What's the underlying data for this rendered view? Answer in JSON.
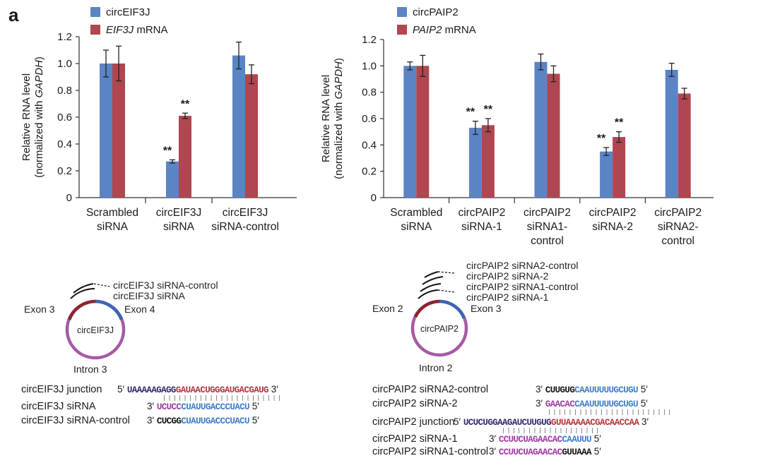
{
  "panel_label": "a",
  "colors": {
    "circ": "#5b84c4",
    "mrna": "#b0464f",
    "exon_dark": "#8b2530",
    "exon_blue": "#3c64b4",
    "intron": "#a65aa6"
  },
  "chart_data": [
    {
      "type": "bar",
      "ylabel": [
        "Relative RNA level",
        "(normalized with GAPDH)"
      ],
      "ylim": [
        0,
        1.2
      ],
      "yticks": [
        "0",
        "0.2",
        "0.4",
        "0.6",
        "0.8",
        "1.0",
        "1.2"
      ],
      "categories": [
        [
          "Scrambled",
          "siRNA"
        ],
        [
          "circEIF3J",
          "siRNA"
        ],
        [
          "circEIF3J",
          "siRNA-control"
        ]
      ],
      "series": [
        {
          "name": "circEIF3J",
          "values": [
            1.0,
            0.27,
            1.06
          ],
          "errors": [
            0.1,
            0.012,
            0.1
          ],
          "annotations": [
            "",
            "**",
            ""
          ]
        },
        {
          "name": "EIF3J mRNA",
          "values": [
            1.0,
            0.61,
            0.92
          ],
          "errors": [
            0.13,
            0.02,
            0.07
          ],
          "annotations": [
            "",
            "**",
            ""
          ]
        }
      ],
      "legend_position": "top-left",
      "grid": false
    },
    {
      "type": "bar",
      "ylabel": [
        "Relative RNA level",
        "(normalized with GAPDH)"
      ],
      "ylim": [
        0,
        1.2
      ],
      "yticks": [
        "0",
        "0.2",
        "0.4",
        "0.6",
        "0.8",
        "1.0",
        "1.2"
      ],
      "categories": [
        [
          "Scrambled",
          "siRNA"
        ],
        [
          "circPAIP2",
          "siRNA-1"
        ],
        [
          "circPAIP2",
          "siRNA1-",
          "control"
        ],
        [
          "circPAIP2",
          "siRNA-2"
        ],
        [
          "circPAIP2",
          "siRNA2-",
          "control"
        ]
      ],
      "series": [
        {
          "name": "circPAIP2",
          "values": [
            1.0,
            0.53,
            1.03,
            0.35,
            0.97
          ],
          "errors": [
            0.03,
            0.05,
            0.06,
            0.03,
            0.05
          ],
          "annotations": [
            "",
            "**",
            "",
            "**",
            ""
          ]
        },
        {
          "name": "PAIP2 mRNA",
          "values": [
            1.0,
            0.55,
            0.94,
            0.46,
            0.79
          ],
          "errors": [
            0.08,
            0.05,
            0.06,
            0.04,
            0.04
          ],
          "annotations": [
            "",
            "**",
            "",
            "**",
            ""
          ]
        }
      ],
      "legend_position": "top-left",
      "grid": false
    }
  ],
  "diagram_left": {
    "circle_label": "circEIF3J",
    "exon_left": "Exon 3",
    "exon_right": "Exon 4",
    "intron": "Intron 3",
    "arc_labels": [
      "circEIF3J siRNA-control",
      "circEIF3J siRNA"
    ]
  },
  "diagram_right": {
    "circle_label": "circPAIP2",
    "exon_left": "Exon 2",
    "exon_right": "Exon 3",
    "intron": "Intron 2",
    "arc_labels": [
      "circPAIP2 siRNA2-control",
      "circPAIP2 siRNA-2",
      "circPAIP2 siRNA1-control",
      "circPAIP2 siRNA-1"
    ]
  },
  "sequences_left": {
    "junction": {
      "label": "circEIF3J junction",
      "five": "5′",
      "three": "3′",
      "seq_a": "UAAAAAGAGG",
      "seq_b": "GAUAACUGGGAUGACGAUG"
    },
    "sirna": {
      "label": "circEIF3J siRNA",
      "three": "3′",
      "five": "5′",
      "seq_a": "UCUCC",
      "seq_b": "CUAUUGACCCUACU"
    },
    "control": {
      "label": "circEIF3J siRNA-control",
      "three": "3′",
      "five": "5′",
      "seq_a": "CUCGG",
      "seq_b": "CUAUUGACCCUACU"
    }
  },
  "sequences_right": {
    "sirna2_control": {
      "label": "circPAIP2 siRNA2-control",
      "three": "3′",
      "five": "5′",
      "seq_a": "CUUGUG",
      "seq_b": "CAAUUUUUGCUGU"
    },
    "sirna2": {
      "label": "circPAIP2 siRNA-2",
      "three": "3′",
      "five": "5′",
      "seq_a": "GAACAC",
      "seq_b": "CAAUUUUUGCUGU"
    },
    "junction": {
      "label": "circPAIP2 junction",
      "five": "5′",
      "three": "3′",
      "seq_a": "UCUCUGGAAGAUCUUGUG",
      "seq_b": "GUUAAAAACGACAACCAA"
    },
    "sirna1": {
      "label": "circPAIP2 siRNA-1",
      "three": "3′",
      "five": "5′",
      "seq_a": "CCUUCUAGAACAC",
      "seq_b": "CAAUUU"
    },
    "sirna1_control": {
      "label": "circPAIP2 siRNA1-control",
      "three": "3′",
      "five": "5′",
      "seq_a": "CCUUCUAGAACAC",
      "seq_b": "GUUAAA"
    }
  }
}
